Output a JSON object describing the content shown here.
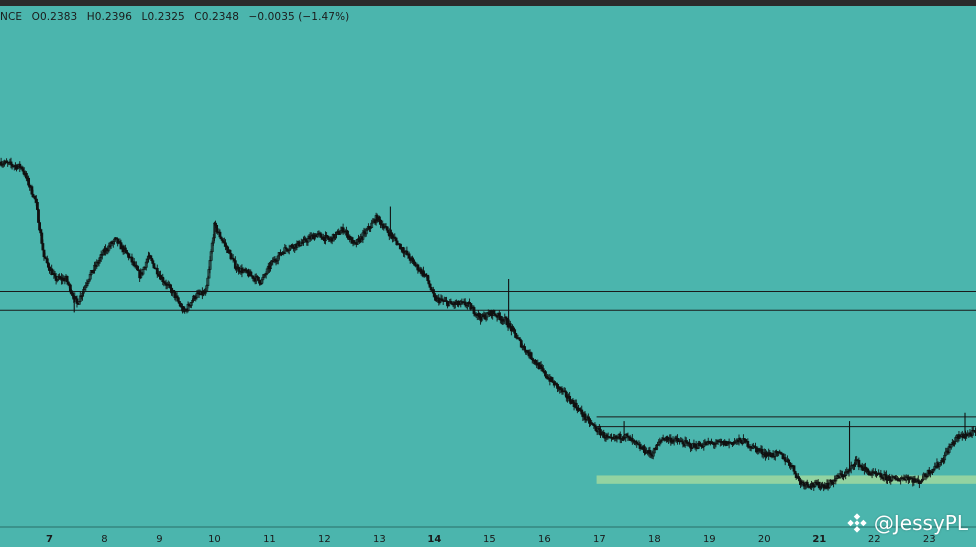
{
  "header": {
    "symbol_fragment": "NCE",
    "open": "O0.2383",
    "high": "H0.2396",
    "low": "L0.2325",
    "close": "C0.2348",
    "change": "−0.0035 (−1.47%)"
  },
  "watermark": {
    "text": "@JessyPL",
    "icon": "binance-diamond-icon"
  },
  "colors": {
    "background": "#4bb5ad",
    "candle": "#111111",
    "level_line": "#1a1a1a",
    "support_zone": "#9bd6a0"
  },
  "chart_data": {
    "type": "candlestick",
    "x_tick_labels": [
      "7",
      "8",
      "9",
      "10",
      "11",
      "12",
      "13",
      "14",
      "15",
      "16",
      "17",
      "18",
      "19",
      "20",
      "21",
      "22",
      "23"
    ],
    "bold_ticks": [
      "7",
      "14",
      "21"
    ],
    "x_range": [
      6.1,
      23.85
    ],
    "y_range": [
      0.173,
      0.3535
    ],
    "price_path": [
      [
        6.1,
        0.304
      ],
      [
        6.5,
        0.302
      ],
      [
        6.75,
        0.29
      ],
      [
        6.9,
        0.27
      ],
      [
        7.1,
        0.262
      ],
      [
        7.3,
        0.262
      ],
      [
        7.5,
        0.253
      ],
      [
        7.7,
        0.262
      ],
      [
        8.0,
        0.272
      ],
      [
        8.2,
        0.276
      ],
      [
        8.45,
        0.27
      ],
      [
        8.65,
        0.263
      ],
      [
        8.8,
        0.27
      ],
      [
        9.05,
        0.262
      ],
      [
        9.25,
        0.257
      ],
      [
        9.45,
        0.25
      ],
      [
        9.65,
        0.256
      ],
      [
        9.85,
        0.257
      ],
      [
        10.0,
        0.281
      ],
      [
        10.2,
        0.274
      ],
      [
        10.4,
        0.266
      ],
      [
        10.6,
        0.264
      ],
      [
        10.85,
        0.261
      ],
      [
        11.05,
        0.268
      ],
      [
        11.3,
        0.273
      ],
      [
        11.6,
        0.275
      ],
      [
        11.85,
        0.278
      ],
      [
        12.1,
        0.276
      ],
      [
        12.35,
        0.28
      ],
      [
        12.55,
        0.274
      ],
      [
        12.8,
        0.28
      ],
      [
        12.95,
        0.284
      ],
      [
        13.2,
        0.278
      ],
      [
        13.45,
        0.272
      ],
      [
        13.65,
        0.267
      ],
      [
        13.85,
        0.263
      ],
      [
        14.0,
        0.255
      ],
      [
        14.3,
        0.253
      ],
      [
        14.6,
        0.253
      ],
      [
        14.85,
        0.248
      ],
      [
        15.05,
        0.25
      ],
      [
        15.3,
        0.247
      ],
      [
        15.6,
        0.238
      ],
      [
        15.85,
        0.232
      ],
      [
        16.0,
        0.228
      ],
      [
        16.3,
        0.222
      ],
      [
        16.55,
        0.217
      ],
      [
        16.75,
        0.212
      ],
      [
        16.95,
        0.208
      ],
      [
        17.2,
        0.204
      ],
      [
        17.45,
        0.206
      ],
      [
        17.7,
        0.202
      ],
      [
        17.95,
        0.199
      ],
      [
        18.15,
        0.205
      ],
      [
        18.4,
        0.204
      ],
      [
        18.7,
        0.202
      ],
      [
        19.0,
        0.203
      ],
      [
        19.3,
        0.203
      ],
      [
        19.6,
        0.204
      ],
      [
        19.85,
        0.201
      ],
      [
        20.05,
        0.199
      ],
      [
        20.3,
        0.199
      ],
      [
        20.5,
        0.195
      ],
      [
        20.65,
        0.189
      ],
      [
        20.9,
        0.188
      ],
      [
        21.15,
        0.188
      ],
      [
        21.35,
        0.191
      ],
      [
        21.55,
        0.193
      ],
      [
        21.65,
        0.197
      ],
      [
        21.8,
        0.194
      ],
      [
        21.95,
        0.192
      ],
      [
        22.15,
        0.191
      ],
      [
        22.4,
        0.19
      ],
      [
        22.6,
        0.191
      ],
      [
        22.8,
        0.189
      ],
      [
        23.0,
        0.193
      ],
      [
        23.2,
        0.196
      ],
      [
        23.35,
        0.201
      ],
      [
        23.5,
        0.205
      ],
      [
        23.65,
        0.206
      ],
      [
        23.85,
        0.207
      ]
    ],
    "spikes": [
      {
        "x": 7.45,
        "low": 0.25
      },
      {
        "x": 9.45,
        "low": 0.252
      },
      {
        "x": 13.2,
        "high": 0.288
      },
      {
        "x": 15.35,
        "high": 0.262
      },
      {
        "x": 17.45,
        "high": 0.211
      },
      {
        "x": 21.55,
        "high": 0.211
      },
      {
        "x": 23.65,
        "high": 0.214
      }
    ],
    "horizontal_levels": [
      0.2575,
      0.2508,
      0.2125,
      0.209
    ],
    "level_segments": [
      {
        "y": 0.2575,
        "x_start": 6.1,
        "x_end": 23.85
      },
      {
        "y": 0.2508,
        "x_start": 6.1,
        "x_end": 23.85
      },
      {
        "y": 0.2125,
        "x_start": 16.95,
        "x_end": 23.85
      },
      {
        "y": 0.209,
        "x_start": 16.95,
        "x_end": 23.85
      }
    ],
    "support_zone": {
      "x_start": 16.95,
      "x_end": 23.85,
      "y_low": 0.1885,
      "y_high": 0.1915
    }
  }
}
